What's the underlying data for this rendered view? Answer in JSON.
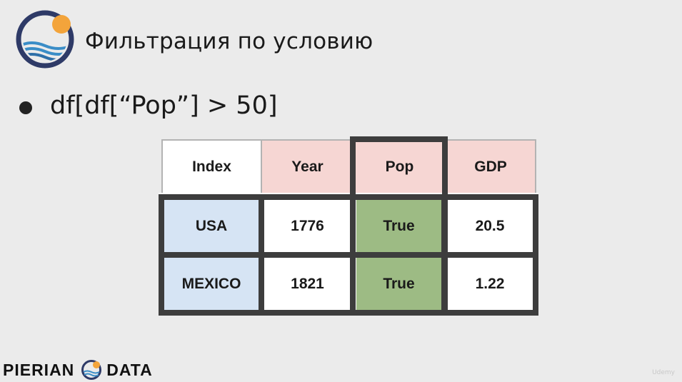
{
  "slide": {
    "title": "Фильтрация по условию",
    "bullet": "df[df[“Pop”] > 50]"
  },
  "table": {
    "headers": [
      "Index",
      "Year",
      "Pop",
      "GDP"
    ],
    "rows": [
      [
        "USA",
        "1776",
        "True",
        "20.5"
      ],
      [
        "MEXICO",
        "1821",
        "True",
        "1.22"
      ]
    ]
  },
  "footer": {
    "brand_left": "PIERIAN",
    "brand_right": "DATA",
    "watermark": "Udemy"
  },
  "colors": {
    "header_pink": "#f6d6d3",
    "index_blue": "#d6e4f4",
    "true_green": "#9dbb84",
    "border_dark": "#3d3d3d",
    "logo_navy": "#2e3a67",
    "logo_orange": "#f3a43b",
    "logo_wave": "#3a8dc7"
  },
  "icons": [
    "pierian-logo-icon",
    "bullet-dot-icon",
    "pierian-footer-logo-icon"
  ]
}
